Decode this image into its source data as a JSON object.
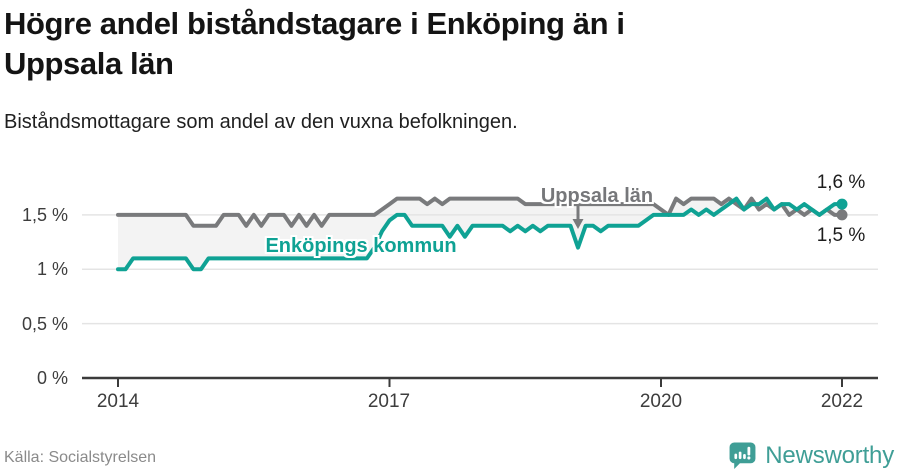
{
  "header": {
    "title": "Högre andel biståndstagare i Enköping än i Uppsala län",
    "subtitle": "Biståndsmottagare som andel av den vuxna befolkningen."
  },
  "chart_data": {
    "type": "line",
    "title": "Högre andel biståndstagare i Enköping än i Uppsala län",
    "subtitle": "Biståndsmottagare som andel av den vuxna befolkningen.",
    "unit": "%",
    "x": {
      "start_year": 2014,
      "end_year": 2022,
      "frequency": "monthly"
    },
    "ylim": [
      0,
      1.82
    ],
    "grid": "horizontal",
    "x_tick_labels": [
      "2014",
      "2017",
      "2020",
      "2022"
    ],
    "y_tick_labels": [
      "0 %",
      "0,5 %",
      "1 %",
      "1,5 %"
    ],
    "band_between_series": true,
    "legend_position": "inline-labels",
    "series": [
      {
        "name": "Uppsala län",
        "color": "#797a7c",
        "end_value_label": "1,5 %",
        "values": [
          1.5,
          1.5,
          1.5,
          1.5,
          1.5,
          1.5,
          1.5,
          1.5,
          1.5,
          1.5,
          1.4,
          1.4,
          1.4,
          1.4,
          1.5,
          1.5,
          1.5,
          1.4,
          1.5,
          1.4,
          1.5,
          1.5,
          1.5,
          1.4,
          1.5,
          1.4,
          1.5,
          1.4,
          1.5,
          1.5,
          1.5,
          1.5,
          1.5,
          1.5,
          1.5,
          1.55,
          1.6,
          1.65,
          1.65,
          1.65,
          1.65,
          1.6,
          1.65,
          1.6,
          1.65,
          1.65,
          1.65,
          1.65,
          1.65,
          1.65,
          1.65,
          1.65,
          1.65,
          1.65,
          1.6,
          1.6,
          1.6,
          1.6,
          1.6,
          1.6,
          1.6,
          1.6,
          1.6,
          1.6,
          1.6,
          1.6,
          1.6,
          1.6,
          1.6,
          1.6,
          1.6,
          1.6,
          1.55,
          1.5,
          1.65,
          1.6,
          1.65,
          1.65,
          1.65,
          1.65,
          1.6,
          1.65,
          1.6,
          1.55,
          1.65,
          1.55,
          1.6,
          1.55,
          1.6,
          1.5,
          1.55,
          1.5,
          1.55,
          1.5,
          1.55,
          1.5,
          1.5
        ]
      },
      {
        "name": "Enköpings kommun",
        "color": "#0fa294",
        "end_value_label": "1,6 %",
        "values": [
          1.0,
          1.0,
          1.1,
          1.1,
          1.1,
          1.1,
          1.1,
          1.1,
          1.1,
          1.1,
          1.0,
          1.0,
          1.1,
          1.1,
          1.1,
          1.1,
          1.1,
          1.1,
          1.1,
          1.1,
          1.1,
          1.1,
          1.1,
          1.1,
          1.1,
          1.1,
          1.1,
          1.1,
          1.1,
          1.1,
          1.1,
          1.1,
          1.1,
          1.1,
          1.2,
          1.35,
          1.45,
          1.5,
          1.5,
          1.4,
          1.4,
          1.4,
          1.4,
          1.4,
          1.3,
          1.4,
          1.3,
          1.4,
          1.4,
          1.4,
          1.4,
          1.4,
          1.35,
          1.4,
          1.35,
          1.4,
          1.35,
          1.4,
          1.4,
          1.4,
          1.4,
          1.2,
          1.4,
          1.4,
          1.35,
          1.4,
          1.4,
          1.4,
          1.4,
          1.4,
          1.45,
          1.5,
          1.5,
          1.5,
          1.5,
          1.5,
          1.55,
          1.5,
          1.55,
          1.5,
          1.55,
          1.6,
          1.65,
          1.55,
          1.6,
          1.6,
          1.65,
          1.55,
          1.6,
          1.6,
          1.55,
          1.6,
          1.55,
          1.5,
          1.55,
          1.6,
          1.6
        ]
      }
    ],
    "source": "Källa: Socialstyrelsen"
  },
  "axis": {
    "y_ticks": [
      "1,5 %",
      "1 %",
      "0,5 %",
      "0 %"
    ],
    "x_ticks": [
      "2014",
      "2017",
      "2020",
      "2022"
    ]
  },
  "annotations": {
    "uppsala_label": "Uppsala län",
    "enkoping_label": "Enköpings kommun",
    "end_top": "1,6 %",
    "end_bottom": "1,5 %"
  },
  "footer": {
    "source": "Källa: Socialstyrelsen",
    "brand": "Newsworthy"
  },
  "colors": {
    "teal": "#0fa294",
    "gray": "#797a7c",
    "band": "#f3f3f3",
    "gridline": "#e4e4e4",
    "axis": "#3b3b3b",
    "brand_teal": "#3f9e96"
  }
}
